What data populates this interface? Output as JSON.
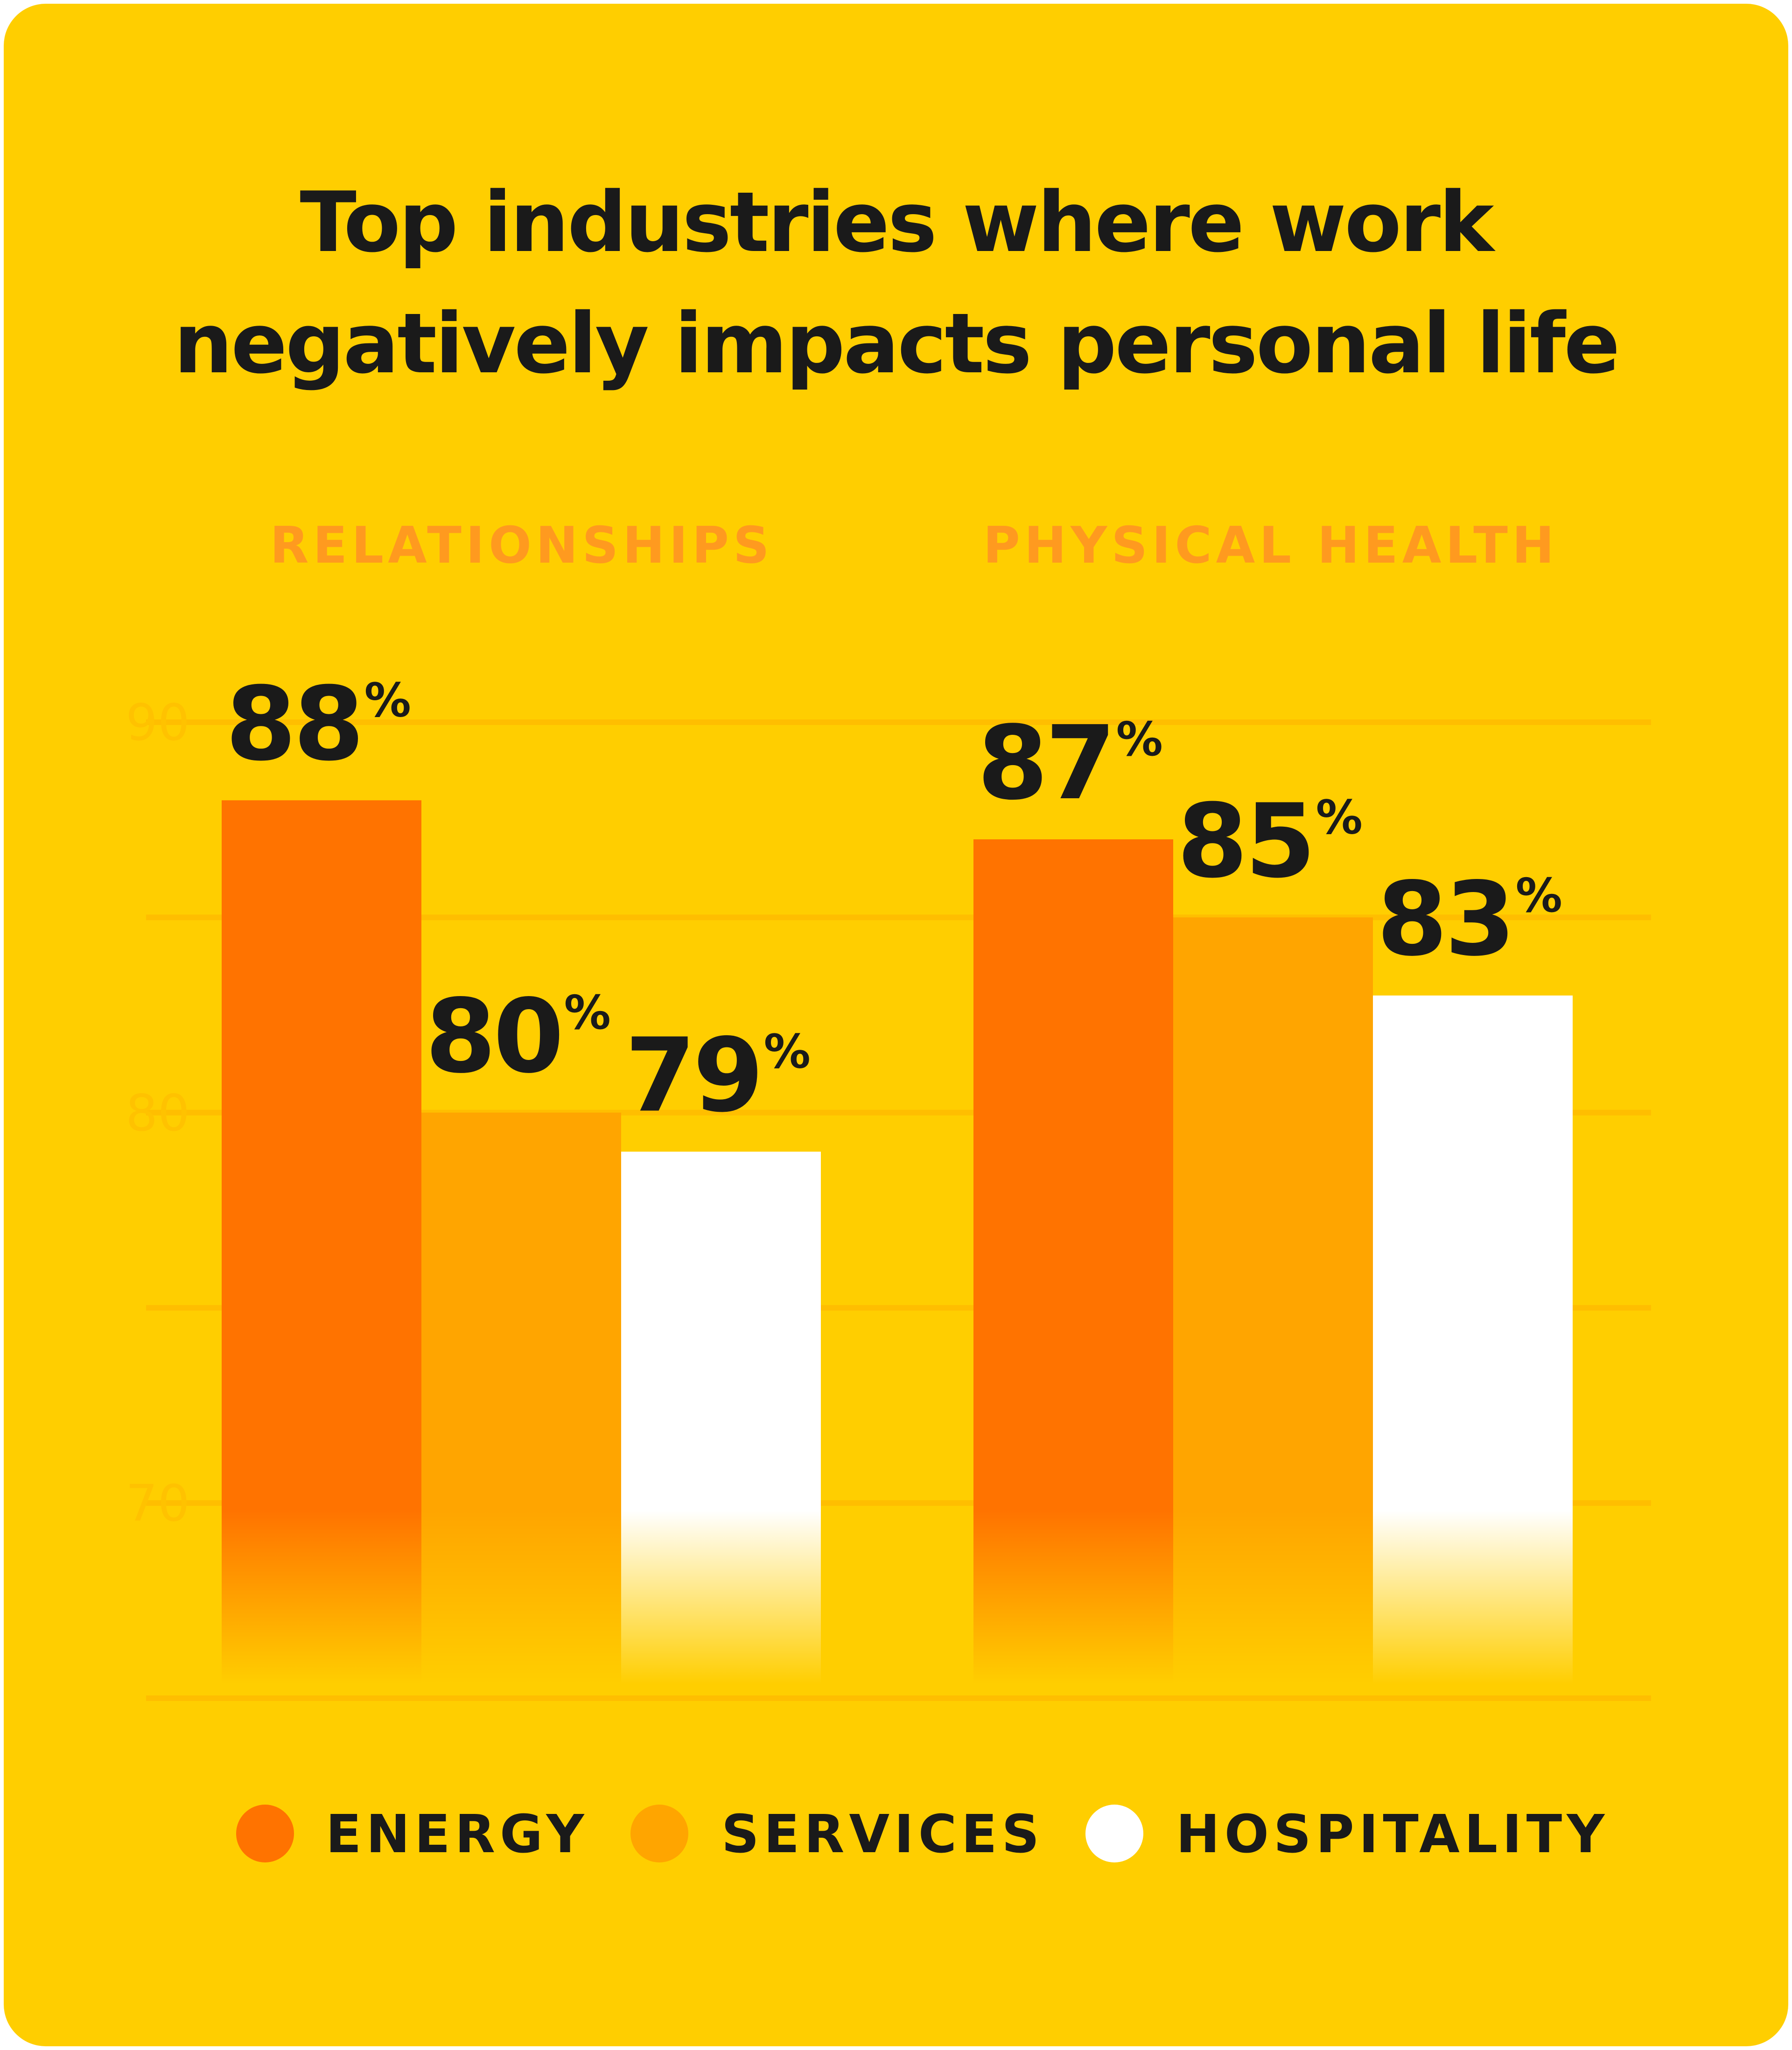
{
  "colors": {
    "background": "#FFCE00",
    "energy": "#FF7300",
    "services": "#FFA500",
    "hospitality": "#FFFFFF",
    "group_label": "#FF9A1F",
    "grid": "#FFBE00",
    "axis_tick": "#FFC200",
    "text": "#1A1A1A"
  },
  "chart_data": {
    "type": "bar",
    "title": "Top industries where work negatively impacts personal life",
    "title_lines": [
      "Top industries where work",
      "negatively impacts personal life"
    ],
    "categories": [
      "RELATIONSHIPS",
      "PHYSICAL HEALTH"
    ],
    "series": [
      {
        "name": "ENERGY",
        "values": [
          88,
          87
        ],
        "labels": [
          "88",
          "87"
        ]
      },
      {
        "name": "SERVICES",
        "values": [
          80,
          85
        ],
        "labels": [
          "80",
          "85"
        ]
      },
      {
        "name": "HOSPITALITY",
        "values": [
          79,
          83
        ],
        "labels": [
          "79",
          "83"
        ]
      }
    ],
    "value_suffix": "%",
    "ylim": [
      65,
      90
    ],
    "yticks": [
      70,
      80,
      90
    ],
    "ytick_labels": [
      "70",
      "80",
      "90"
    ],
    "grid": true,
    "legend_position": "bottom"
  }
}
